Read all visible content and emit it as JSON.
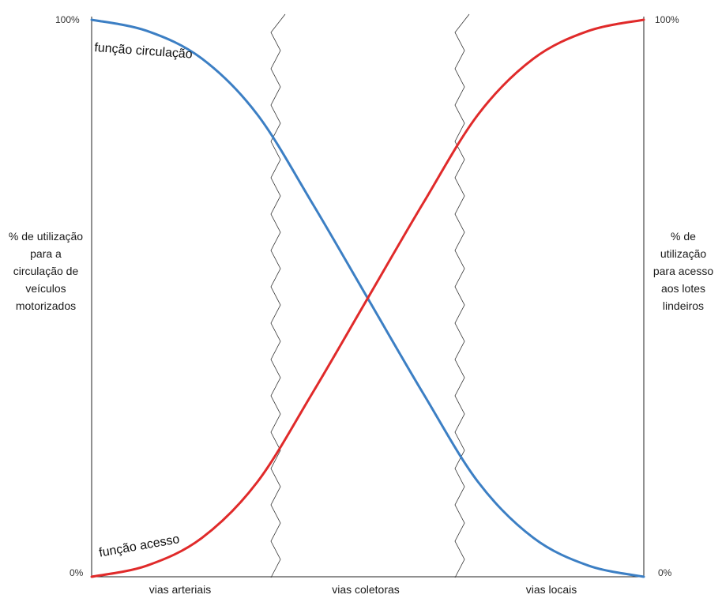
{
  "chart_data": {
    "type": "line",
    "title": "",
    "categories": [
      "vias arteriais",
      "vias coletoras",
      "vias locais"
    ],
    "x": [
      0,
      0.1,
      0.2,
      0.3,
      0.4,
      0.5,
      0.6,
      0.7,
      0.8,
      0.9,
      1.0
    ],
    "series": [
      {
        "name": "função circulação",
        "color": "#3c7fc4",
        "values": [
          100,
          98,
          93,
          83,
          67,
          50,
          33,
          17,
          7,
          2,
          0
        ]
      },
      {
        "name": "função acesso",
        "color": "#e02a2a",
        "values": [
          0,
          2,
          7,
          17,
          33,
          50,
          67,
          83,
          93,
          98,
          100
        ]
      }
    ],
    "ylim": [
      0,
      100
    ],
    "y_ticks_left": [
      "100%",
      "0%"
    ],
    "y_ticks_right": [
      "100%",
      "0%"
    ],
    "ylabel_left": [
      "% de utilização",
      "para a",
      "circulação de",
      "veículos",
      "motorizados"
    ],
    "ylabel_right": [
      "% de",
      "utilização",
      "para acesso",
      "aos lotes",
      "lindeiros"
    ],
    "annotations": {
      "circulacao": "função circulação",
      "acesso": "função acesso"
    },
    "grid": false
  }
}
